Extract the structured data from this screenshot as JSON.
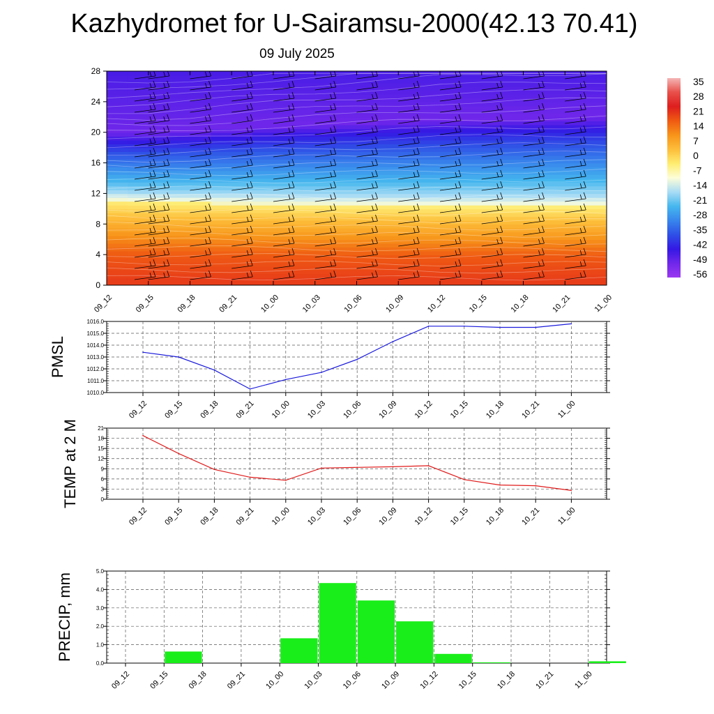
{
  "title": "Kazhydromet for U-Sairamsu-2000(42.13 70.41)",
  "subtitle": "09 July 2025",
  "time_labels": [
    "09_12",
    "09_15",
    "09_18",
    "09_21",
    "10_00",
    "10_03",
    "10_06",
    "10_09",
    "10_12",
    "10_15",
    "10_18",
    "10_21",
    "11_00"
  ],
  "chart_data": [
    {
      "type": "heatmap",
      "title": "",
      "xlabel": "",
      "ylabel": "",
      "y_ticks": [
        0,
        4,
        8,
        12,
        16,
        20,
        24,
        28
      ],
      "ylim": [
        0,
        28
      ],
      "freezing_level": [
        11.0,
        10.9,
        10.8,
        10.7,
        10.6,
        10.5,
        10.4,
        10.4,
        10.3,
        10.3,
        10.3,
        10.3,
        10.3
      ],
      "coldest_band_level": [
        20.0,
        20.0,
        20.2,
        20.5,
        20.8,
        21.0,
        21.2,
        21.4,
        21.6,
        21.7,
        21.8,
        21.9,
        22.0
      ],
      "colorbar": {
        "labels": [
          "35",
          "28",
          "21",
          "14",
          "7",
          "0",
          "-7",
          "-14",
          "-21",
          "-28",
          "-35",
          "-42",
          "-49",
          "-56"
        ],
        "colors": [
          "#f4b6b6",
          "#e8504a",
          "#dd1e1e",
          "#ef5a12",
          "#f7941a",
          "#fdbd3a",
          "#feed72",
          "#fdfdd8",
          "#a9dcf5",
          "#45b7ee",
          "#3886ec",
          "#2f4fe6",
          "#3418e4",
          "#7027ea",
          "#9b38f0"
        ]
      },
      "wind_barbs": true,
      "grid": false
    },
    {
      "type": "line",
      "ylabel": "PMSL",
      "ylim": [
        1010.0,
        1016.0
      ],
      "y_ticks": [
        "1010.0",
        "1011.0",
        "1012.0",
        "1013.0",
        "1014.0",
        "1015.0",
        "1016.0"
      ],
      "series": [
        {
          "values": [
            1013.4,
            1013.0,
            1011.9,
            1010.3,
            1011.1,
            1011.7,
            1012.8,
            1014.3,
            1015.6,
            1015.6,
            1015.5,
            1015.5,
            1015.8
          ],
          "color": "#1a1adc"
        }
      ],
      "grid": true
    },
    {
      "type": "line",
      "ylabel": "TEMP at 2 M",
      "ylim": [
        0,
        21
      ],
      "y_ticks": [
        "0",
        "3",
        "6",
        "9",
        "12",
        "15",
        "18",
        "21"
      ],
      "series": [
        {
          "values": [
            18.8,
            13.5,
            8.8,
            6.5,
            5.6,
            9.2,
            9.4,
            9.6,
            9.9,
            5.8,
            4.2,
            4.0,
            2.6
          ],
          "color": "#e01a1a"
        }
      ],
      "grid": true
    },
    {
      "type": "bar",
      "ylabel": "PRECIP, mm",
      "ylim": [
        0,
        5.0
      ],
      "y_ticks": [
        "0.0",
        "1.0",
        "2.0",
        "3.0",
        "4.0",
        "5.0"
      ],
      "values": [
        0.0,
        0.63,
        0.0,
        0.0,
        1.35,
        4.35,
        3.4,
        2.27,
        0.5,
        0.04,
        0.0,
        0.0,
        0.1
      ],
      "bar_color": "#1aee1a",
      "grid": true
    }
  ]
}
